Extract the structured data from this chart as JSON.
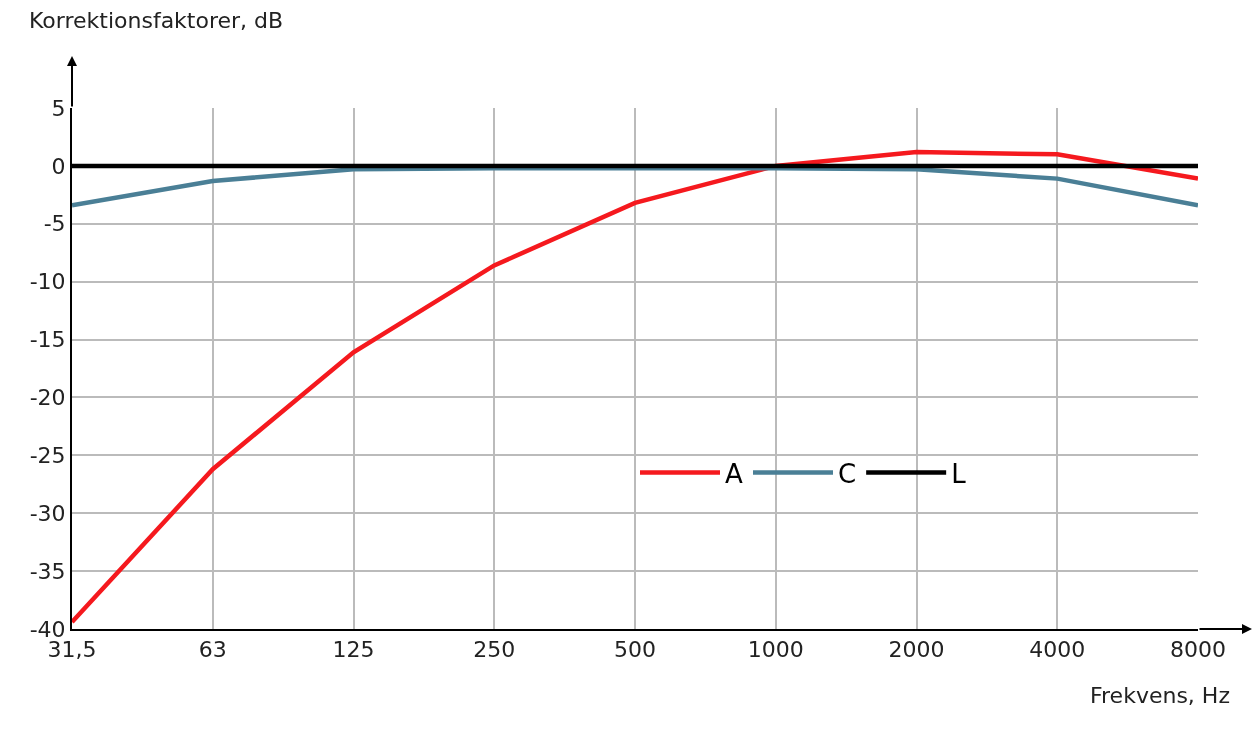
{
  "chart_data": {
    "type": "line",
    "xlabel": "Frekvens, Hz",
    "ylabel": "Korrektionsfaktorer, dB",
    "categories": [
      "31,5",
      "63",
      "125",
      "250",
      "500",
      "1000",
      "2000",
      "4000",
      "8000"
    ],
    "series": [
      {
        "name": "A",
        "color": "#f5191e",
        "values": [
          -39.4,
          -26.2,
          -16.1,
          -8.6,
          -3.2,
          0,
          1.2,
          1,
          -1.1
        ]
      },
      {
        "name": "C",
        "color": "#4a7f96",
        "values": [
          -3.4,
          -1.3,
          -0.3,
          -0.2,
          -0.2,
          -0.2,
          -0.3,
          -1.1,
          -3.4
        ]
      },
      {
        "name": "L",
        "color": "#000000",
        "values": [
          0,
          0,
          0,
          0,
          0,
          0,
          0,
          0,
          0
        ]
      }
    ],
    "ylim": [
      -40,
      5
    ],
    "yticks": [
      5,
      0,
      -5,
      -10,
      -15,
      -20,
      -25,
      -30,
      -35,
      -40
    ],
    "grid": true,
    "legend": "bottom right",
    "marker": "none",
    "line_style": "solid"
  }
}
